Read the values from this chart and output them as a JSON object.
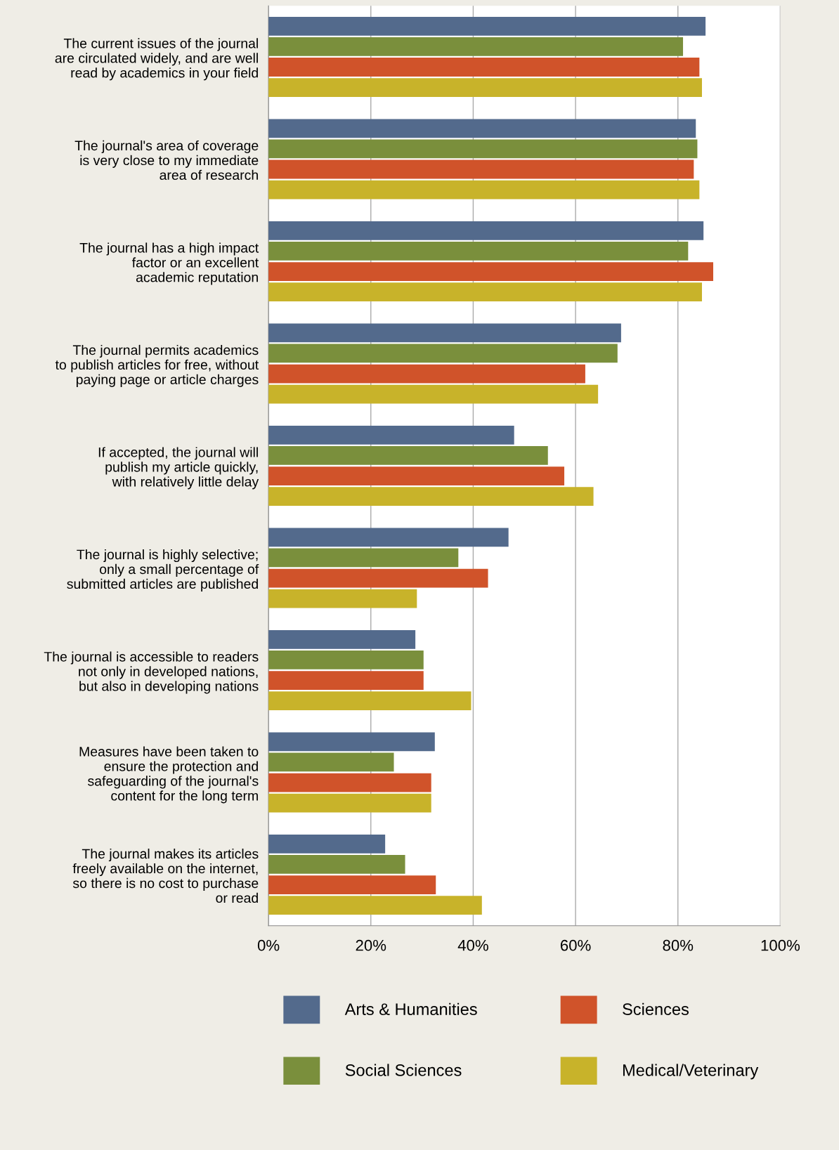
{
  "chart_data": {
    "type": "bar",
    "orientation": "horizontal",
    "categories": [
      "The current issues of the journal\nare circulated widely, and are well\nread by academics in your field",
      "The journal's area of coverage\nis very close to my immediate\narea of research",
      "The journal has a high impact\nfactor or an excellent\nacademic reputation",
      "The journal permits academics\nto publish articles for free, without\npaying page or article charges",
      "If accepted, the journal will\npublish my article quickly,\nwith relatively little delay",
      "The journal is highly selective;\nonly a small percentage of\nsubmitted articles are published",
      "The journal is accessible to readers\nnot only in developed nations,\nbut also in developing nations",
      "Measures have been taken to\nensure the protection and\nsafeguarding of the journal's\ncontent for the long term",
      "The journal makes its articles\nfreely available on the internet,\nso there is no cost to purchase\nor read"
    ],
    "series": [
      {
        "name": "Arts & Humanities",
        "color": "#536a8c",
        "values": [
          85.4,
          83.5,
          85.0,
          68.9,
          48.0,
          46.9,
          28.7,
          32.5,
          22.8
        ]
      },
      {
        "name": "Social Sciences",
        "color": "#7a8f3c",
        "values": [
          81.0,
          83.8,
          82.0,
          68.2,
          54.6,
          37.1,
          30.3,
          24.5,
          26.7
        ]
      },
      {
        "name": "Sciences",
        "color": "#d0532a",
        "values": [
          84.2,
          83.1,
          86.9,
          61.9,
          57.8,
          42.9,
          30.3,
          31.8,
          32.7
        ]
      },
      {
        "name": "Medical/Veterinary",
        "color": "#c8b32a",
        "values": [
          84.7,
          84.2,
          84.7,
          64.4,
          63.5,
          29.0,
          39.6,
          31.8,
          41.7
        ]
      }
    ],
    "xlim": [
      0,
      100
    ],
    "xticks": [
      {
        "value": 0,
        "label": "0%"
      },
      {
        "value": 20,
        "label": "20%"
      },
      {
        "value": 40,
        "label": "40%"
      },
      {
        "value": 60,
        "label": "60%"
      },
      {
        "value": 80,
        "label": "80%"
      },
      {
        "value": 100,
        "label": "100%"
      }
    ],
    "grid": "x",
    "legend": "bottom"
  }
}
